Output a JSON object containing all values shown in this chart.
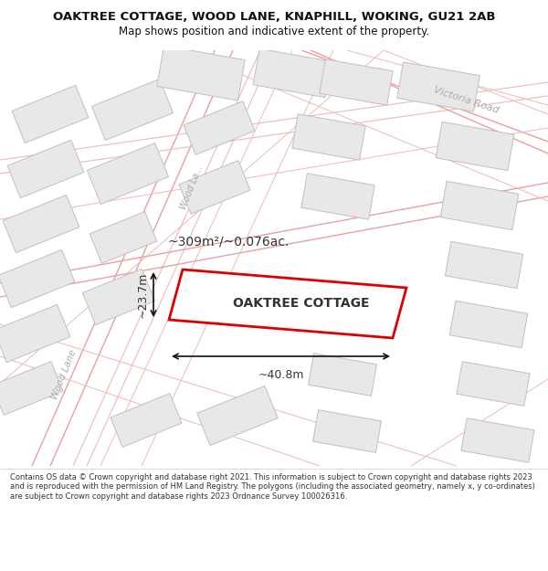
{
  "title": "OAKTREE COTTAGE, WOOD LANE, KNAPHILL, WOKING, GU21 2AB",
  "subtitle": "Map shows position and indicative extent of the property.",
  "footer_text": "Contains OS data © Crown copyright and database right 2021. This information is subject to Crown copyright and database rights 2023 and is reproduced with the permission of HM Land Registry. The polygons (including the associated geometry, namely x, y co-ordinates) are subject to Crown copyright and database rights 2023 Ordnance Survey 100026316.",
  "property_label": "OAKTREE COTTAGE",
  "area_label": "~309m²/~0.076ac.",
  "width_label": "~40.8m",
  "height_label": "~23.7m",
  "road_label_victoria": "Victoria Road",
  "road_label_wood1": "Wood Lane",
  "road_label_wood2": "Wood La...",
  "property_color": "#dd0000",
  "road_color": "#e8a0a0",
  "road_color2": "#f0b8b8",
  "building_face": "#e8e8e8",
  "building_edge": "#c0c0c0",
  "map_bg": "#ffffff",
  "header_bg": "#ffffff",
  "footer_bg": "#ffffff",
  "text_color": "#333333",
  "road_label_color": "#aaaaaa"
}
